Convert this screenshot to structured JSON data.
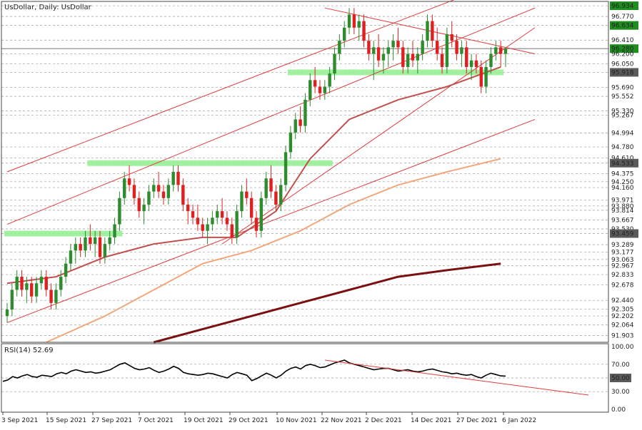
{
  "header": {
    "title": "UsDollar, Daily:  UsDollar",
    "rsi_label": "RSI(14) 52.69"
  },
  "chart_data": [
    {
      "type": "candlestick",
      "title": "UsDollar, Daily:  UsDollar",
      "symbol": "UsDollar",
      "timeframe": "Daily",
      "ylim": [
        91.8,
        97.0
      ],
      "price_levels": [
        96.934,
        96.77,
        96.634,
        96.41,
        96.28,
        96.2,
        96.05,
        95.918,
        95.69,
        95.552,
        95.33,
        95.267,
        94.994,
        94.78,
        94.61,
        94.533,
        94.375,
        94.25,
        94.16,
        93.971,
        93.88,
        93.814,
        93.667,
        93.53,
        93.459,
        93.289,
        93.177,
        93.063,
        92.967,
        92.833,
        92.678,
        92.44,
        92.305,
        92.202,
        92.064,
        91.903
      ],
      "highlighted_levels": [
        {
          "label": "96.934",
          "color": "#1e8c1e"
        },
        {
          "label": "96.634",
          "color": "#1e8c1e"
        },
        {
          "label": "96.280",
          "color": "#1e8c1e"
        },
        {
          "label": "95.918",
          "color": "#5a5a5a"
        },
        {
          "label": "94.533",
          "color": "#5a5a5a"
        },
        {
          "label": "93.459",
          "color": "#5a5a5a"
        }
      ],
      "current_price": 96.28,
      "x_tick_labels": [
        "3 Sep 2021",
        "15 Sep 2021",
        "27 Sep 2021",
        "7 Oct 2021",
        "19 Oct 2021",
        "29 Oct 2021",
        "10 Nov 2021",
        "22 Nov 2021",
        "2 Dec 2021",
        "14 Dec 2021",
        "27 Dec 2021",
        "6 Jan 2022"
      ],
      "candles_ohlc": [
        [
          92.2,
          92.4,
          92.1,
          92.3
        ],
        [
          92.3,
          92.7,
          92.2,
          92.6
        ],
        [
          92.6,
          92.9,
          92.5,
          92.8
        ],
        [
          92.8,
          92.9,
          92.5,
          92.6
        ],
        [
          92.6,
          92.8,
          92.4,
          92.7
        ],
        [
          92.7,
          92.8,
          92.4,
          92.5
        ],
        [
          92.5,
          92.8,
          92.4,
          92.7
        ],
        [
          92.7,
          92.9,
          92.6,
          92.8
        ],
        [
          92.8,
          92.9,
          92.5,
          92.6
        ],
        [
          92.6,
          92.7,
          92.3,
          92.4
        ],
        [
          92.4,
          92.7,
          92.3,
          92.6
        ],
        [
          92.6,
          92.9,
          92.5,
          92.8
        ],
        [
          92.8,
          93.1,
          92.7,
          93.0
        ],
        [
          93.0,
          93.3,
          92.9,
          93.2
        ],
        [
          93.2,
          93.4,
          93.0,
          93.3
        ],
        [
          93.3,
          93.4,
          93.1,
          93.2
        ],
        [
          93.2,
          93.5,
          93.1,
          93.4
        ],
        [
          93.4,
          93.6,
          93.2,
          93.3
        ],
        [
          93.3,
          93.5,
          93.1,
          93.4
        ],
        [
          93.4,
          93.5,
          93.0,
          93.1
        ],
        [
          93.1,
          93.4,
          93.0,
          93.3
        ],
        [
          93.3,
          93.5,
          93.2,
          93.4
        ],
        [
          93.4,
          93.7,
          93.3,
          93.6
        ],
        [
          93.6,
          94.1,
          93.5,
          94.0
        ],
        [
          94.0,
          94.4,
          93.9,
          94.3
        ],
        [
          94.3,
          94.5,
          94.1,
          94.2
        ],
        [
          94.2,
          94.3,
          93.9,
          94.0
        ],
        [
          94.0,
          94.1,
          93.7,
          93.8
        ],
        [
          93.8,
          94.0,
          93.6,
          93.9
        ],
        [
          93.9,
          94.2,
          93.8,
          94.1
        ],
        [
          94.1,
          94.3,
          94.0,
          94.2
        ],
        [
          94.2,
          94.4,
          94.0,
          94.1
        ],
        [
          94.1,
          94.2,
          93.9,
          94.0
        ],
        [
          94.0,
          94.3,
          93.9,
          94.2
        ],
        [
          94.2,
          94.5,
          94.1,
          94.4
        ],
        [
          94.4,
          94.5,
          94.1,
          94.2
        ],
        [
          94.2,
          94.3,
          93.8,
          93.9
        ],
        [
          93.9,
          94.0,
          93.6,
          93.8
        ],
        [
          93.8,
          93.9,
          93.6,
          93.7
        ],
        [
          93.7,
          93.9,
          93.5,
          93.6
        ],
        [
          93.6,
          93.7,
          93.4,
          93.5
        ],
        [
          93.5,
          93.7,
          93.3,
          93.6
        ],
        [
          93.6,
          93.8,
          93.5,
          93.7
        ],
        [
          93.7,
          93.9,
          93.6,
          93.8
        ],
        [
          93.8,
          94.0,
          93.6,
          93.7
        ],
        [
          93.7,
          93.8,
          93.5,
          93.6
        ],
        [
          93.6,
          93.7,
          93.3,
          93.4
        ],
        [
          93.4,
          93.9,
          93.3,
          93.8
        ],
        [
          93.8,
          94.2,
          93.7,
          94.1
        ],
        [
          94.1,
          94.3,
          93.9,
          94.0
        ],
        [
          94.0,
          94.1,
          93.6,
          93.7
        ],
        [
          93.7,
          93.8,
          93.4,
          93.5
        ],
        [
          93.5,
          94.1,
          93.4,
          94.0
        ],
        [
          94.0,
          94.4,
          93.9,
          94.3
        ],
        [
          94.3,
          94.5,
          94.0,
          94.1
        ],
        [
          94.1,
          94.2,
          93.8,
          93.9
        ],
        [
          93.9,
          94.3,
          93.8,
          94.2
        ],
        [
          94.2,
          94.8,
          94.1,
          94.7
        ],
        [
          94.7,
          95.1,
          94.6,
          95.0
        ],
        [
          95.0,
          95.3,
          94.9,
          95.2
        ],
        [
          95.2,
          95.4,
          95.0,
          95.1
        ],
        [
          95.1,
          95.6,
          95.0,
          95.5
        ],
        [
          95.5,
          95.9,
          95.4,
          95.8
        ],
        [
          95.8,
          96.0,
          95.6,
          95.7
        ],
        [
          95.7,
          95.8,
          95.5,
          95.6
        ],
        [
          95.6,
          95.8,
          95.5,
          95.7
        ],
        [
          95.7,
          96.0,
          95.6,
          95.9
        ],
        [
          95.9,
          96.3,
          95.8,
          96.2
        ],
        [
          96.2,
          96.5,
          96.1,
          96.4
        ],
        [
          96.4,
          96.7,
          96.3,
          96.6
        ],
        [
          96.6,
          96.9,
          96.5,
          96.8
        ],
        [
          96.8,
          96.9,
          96.5,
          96.6
        ],
        [
          96.6,
          96.8,
          96.4,
          96.7
        ],
        [
          96.7,
          96.8,
          96.3,
          96.4
        ],
        [
          96.4,
          96.5,
          96.1,
          96.2
        ],
        [
          96.2,
          96.4,
          95.8,
          96.3
        ],
        [
          96.3,
          96.5,
          96.0,
          96.1
        ],
        [
          96.1,
          96.3,
          95.9,
          96.2
        ],
        [
          96.2,
          96.4,
          96.0,
          96.3
        ],
        [
          96.3,
          96.5,
          96.1,
          96.4
        ],
        [
          96.4,
          96.6,
          96.2,
          96.3
        ],
        [
          96.3,
          96.4,
          95.9,
          96.0
        ],
        [
          96.0,
          96.3,
          95.9,
          96.2
        ],
        [
          96.2,
          96.4,
          96.0,
          96.1
        ],
        [
          96.1,
          96.3,
          95.9,
          96.2
        ],
        [
          96.2,
          96.5,
          96.1,
          96.4
        ],
        [
          96.4,
          96.8,
          96.3,
          96.7
        ],
        [
          96.7,
          96.8,
          96.3,
          96.4
        ],
        [
          96.4,
          96.6,
          96.1,
          96.2
        ],
        [
          96.2,
          96.3,
          95.9,
          96.0
        ],
        [
          96.0,
          96.6,
          95.9,
          96.5
        ],
        [
          96.5,
          96.7,
          96.3,
          96.4
        ],
        [
          96.4,
          96.5,
          96.1,
          96.2
        ],
        [
          96.2,
          96.4,
          96.0,
          96.3
        ],
        [
          96.3,
          96.4,
          95.9,
          96.0
        ],
        [
          96.0,
          96.2,
          95.8,
          96.1
        ],
        [
          96.1,
          96.2,
          95.9,
          96.0
        ],
        [
          96.0,
          96.1,
          95.6,
          95.7
        ],
        [
          95.7,
          96.1,
          95.6,
          96.0
        ],
        [
          96.0,
          96.3,
          95.9,
          96.2
        ],
        [
          96.2,
          96.4,
          96.1,
          96.3
        ],
        [
          96.3,
          96.4,
          96.0,
          96.2
        ],
        [
          96.2,
          96.3,
          96.0,
          96.28
        ]
      ],
      "ma_fast": [
        [
          0,
          92.7
        ],
        [
          10,
          92.8
        ],
        [
          20,
          93.1
        ],
        [
          30,
          93.3
        ],
        [
          40,
          93.4
        ],
        [
          47,
          93.4
        ],
        [
          55,
          93.8
        ],
        [
          62,
          94.6
        ],
        [
          70,
          95.2
        ],
        [
          80,
          95.5
        ],
        [
          90,
          95.7
        ],
        [
          101,
          96.0
        ]
      ],
      "ma_mid": [
        [
          8,
          91.8
        ],
        [
          20,
          92.2
        ],
        [
          30,
          92.6
        ],
        [
          40,
          93.0
        ],
        [
          50,
          93.2
        ],
        [
          60,
          93.5
        ],
        [
          70,
          93.9
        ],
        [
          80,
          94.2
        ],
        [
          90,
          94.4
        ],
        [
          101,
          94.6
        ]
      ],
      "ma_slow": [
        [
          30,
          91.8
        ],
        [
          50,
          92.2
        ],
        [
          60,
          92.4
        ],
        [
          70,
          92.6
        ],
        [
          80,
          92.8
        ],
        [
          90,
          92.9
        ],
        [
          101,
          93.0
        ]
      ],
      "trendlines": [
        {
          "from": [
            0,
            92.1
          ],
          "to": [
            108,
            95.2
          ]
        },
        {
          "from": [
            0,
            93.6
          ],
          "to": [
            108,
            96.9
          ]
        },
        {
          "from": [
            0,
            94.4
          ],
          "to": [
            108,
            97.5
          ]
        },
        {
          "from": [
            44,
            93.3
          ],
          "to": [
            108,
            96.6
          ]
        },
        {
          "from": [
            65,
            96.9
          ],
          "to": [
            108,
            96.2
          ]
        }
      ],
      "support_zones": [
        {
          "y": 95.918,
          "x_from": 58,
          "x_to": 101
        },
        {
          "y": 94.533,
          "x_from": 17,
          "x_to": 66
        },
        {
          "y": 93.459,
          "x_from": 0,
          "x_to": 23
        }
      ]
    },
    {
      "type": "line",
      "title": "RSI(14) 52.69",
      "ylim": [
        0,
        100
      ],
      "y_ticks": [
        "100.00",
        "70.00",
        "50.00",
        "30.00",
        "0.00"
      ],
      "highlighted_level": "50.00",
      "last_value": 52.69,
      "series": [
        {
          "values": [
            45,
            47,
            52,
            50,
            53,
            55,
            52,
            51,
            54,
            53,
            52,
            56,
            58,
            56,
            60,
            62,
            60,
            58,
            59,
            57,
            58,
            60,
            62,
            66,
            70,
            72,
            68,
            64,
            62,
            63,
            65,
            61,
            58,
            60,
            63,
            67,
            64,
            58,
            56,
            55,
            54,
            55,
            57,
            56,
            54,
            52,
            50,
            55,
            58,
            56,
            54,
            46,
            49,
            53,
            57,
            54,
            50,
            54,
            60,
            64,
            66,
            63,
            68,
            70,
            68,
            65,
            66,
            69,
            72,
            74,
            76,
            72,
            70,
            68,
            66,
            64,
            62,
            63,
            64,
            64,
            62,
            60,
            61,
            62,
            60,
            59,
            60,
            62,
            63,
            61,
            59,
            58,
            56,
            57,
            55,
            54,
            55,
            52,
            50,
            54,
            57,
            55,
            53,
            52.69
          ]
        }
      ],
      "trendline": {
        "from": [
          66,
          76
        ],
        "to": [
          120,
          25
        ]
      }
    }
  ]
}
